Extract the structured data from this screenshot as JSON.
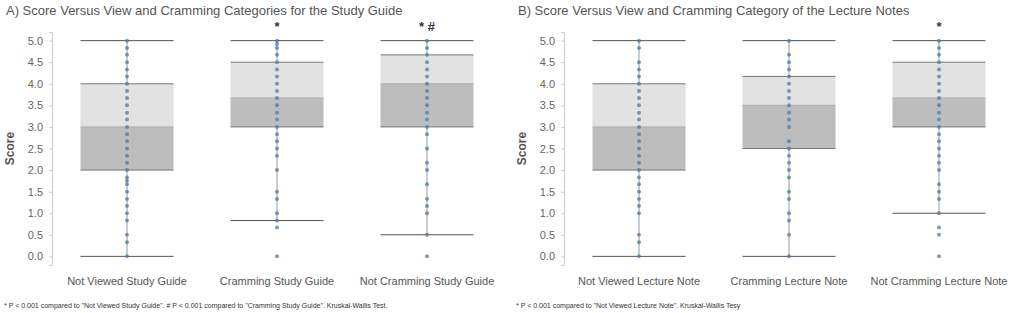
{
  "chart_data": [
    {
      "type": "box",
      "title": "A) Score Versus View and Cramming Categories for the Study Guide",
      "y_label": "Score",
      "categories": [
        "Not Viewed Study Guide",
        "Cramming Study Guide",
        "Not Cramming Study Guide"
      ],
      "stats": [
        {
          "min": 0,
          "q1": 2.0,
          "median": 3.0,
          "q3": 4.0,
          "max": 5.0
        },
        {
          "min": 0.83,
          "q1": 3.0,
          "median": 3.67,
          "q3": 4.5,
          "max": 5.0
        },
        {
          "min": 0.5,
          "q1": 3.0,
          "median": 4.0,
          "q3": 4.67,
          "max": 5.0
        }
      ],
      "points": [
        [
          0,
          0.33,
          0.5,
          0.83,
          1.0,
          1.17,
          1.33,
          1.5,
          1.67,
          1.75,
          1.83,
          2.0,
          2.17,
          2.33,
          2.5,
          2.67,
          2.83,
          3.0,
          3.17,
          3.33,
          3.5,
          3.67,
          3.83,
          4.0,
          4.17,
          4.33,
          4.5,
          4.67,
          4.83,
          5.0
        ],
        [
          0,
          0.67,
          0.83,
          1.0,
          1.33,
          1.5,
          2.0,
          2.33,
          2.5,
          2.67,
          2.83,
          3.0,
          3.17,
          3.33,
          3.5,
          3.67,
          3.83,
          4.0,
          4.17,
          4.33,
          4.5,
          4.67,
          4.83,
          4.92,
          5.0
        ],
        [
          0,
          0.5,
          1.0,
          1.17,
          1.33,
          1.67,
          2.0,
          2.17,
          2.5,
          2.83,
          3.0,
          3.17,
          3.33,
          3.5,
          3.67,
          3.83,
          4.0,
          4.17,
          4.33,
          4.5,
          4.67,
          4.83,
          5.0
        ]
      ],
      "annotations": [
        null,
        "*",
        "* #"
      ],
      "footnote": "* P < 0.001 compared to \"Not Viewed Study Guide\". # P < 0.001 compared to \"Cramming Study Guide\". Kruskal-Wallis Test.",
      "color": "#4e79a7",
      "ylim": [
        -0.2,
        5.2
      ],
      "yticks": [
        {
          "value": 0,
          "label": "0.0"
        },
        0.5,
        {
          "value": 1,
          "label": "1.0"
        },
        1.5,
        {
          "value": 2,
          "label": "2.0"
        },
        2.5,
        {
          "value": 3,
          "label": "3.0"
        },
        3.5,
        {
          "value": 4,
          "label": "4.0"
        },
        4.5,
        {
          "value": 5,
          "label": "5.0"
        }
      ],
      "grid": false
    },
    {
      "type": "box",
      "title": "B) Score Versus View and Cramming Category of the Lecture Notes",
      "y_label": "Score",
      "categories": [
        "Not Viewed Lecture Note",
        "Cramming Lecture Note",
        "Not Cramming Lecture Note"
      ],
      "stats": [
        {
          "min": 0,
          "q1": 2.0,
          "median": 3.0,
          "q3": 4.0,
          "max": 5.0
        },
        {
          "min": 0,
          "q1": 2.5,
          "median": 3.5,
          "q3": 4.17,
          "max": 5.0
        },
        {
          "min": 1.0,
          "q1": 3.0,
          "median": 3.67,
          "q3": 4.5,
          "max": 5.0
        }
      ],
      "points": [
        [
          0,
          0.33,
          0.5,
          1.0,
          1.17,
          1.33,
          1.5,
          1.67,
          1.83,
          2.0,
          2.17,
          2.33,
          2.5,
          2.67,
          2.83,
          3.0,
          3.17,
          3.33,
          3.5,
          3.67,
          3.83,
          4.0,
          4.17,
          4.33,
          4.5,
          4.83,
          5.0
        ],
        [
          0,
          0.5,
          0.83,
          1.0,
          1.33,
          1.5,
          1.83,
          2.0,
          2.17,
          2.33,
          2.5,
          2.67,
          3.0,
          3.17,
          3.33,
          3.5,
          3.67,
          3.83,
          4.0,
          4.17,
          4.33,
          4.5,
          4.67,
          5.0
        ],
        [
          0,
          0.5,
          0.67,
          1.0,
          1.33,
          1.5,
          1.67,
          2.0,
          2.17,
          2.33,
          2.5,
          2.67,
          2.83,
          3.0,
          3.17,
          3.33,
          3.5,
          3.67,
          3.83,
          4.0,
          4.17,
          4.33,
          4.5,
          4.67,
          4.83,
          5.0
        ]
      ],
      "annotations": [
        null,
        null,
        "*"
      ],
      "footnote": "* P < 0.001 compared to \"Not Viewed Lecture Note\". Kruskal-Wallis Tesy",
      "color": "#4e79a7",
      "ylim": [
        -0.2,
        5.2
      ],
      "yticks": [
        {
          "value": 0,
          "label": "0.0"
        },
        0.5,
        {
          "value": 1,
          "label": "1.0"
        },
        1.5,
        {
          "value": 2,
          "label": "2.0"
        },
        2.5,
        {
          "value": 3,
          "label": "3.0"
        },
        3.5,
        {
          "value": 4,
          "label": "4.0"
        },
        4.5,
        {
          "value": 5,
          "label": "5.0"
        }
      ],
      "grid": false
    }
  ]
}
